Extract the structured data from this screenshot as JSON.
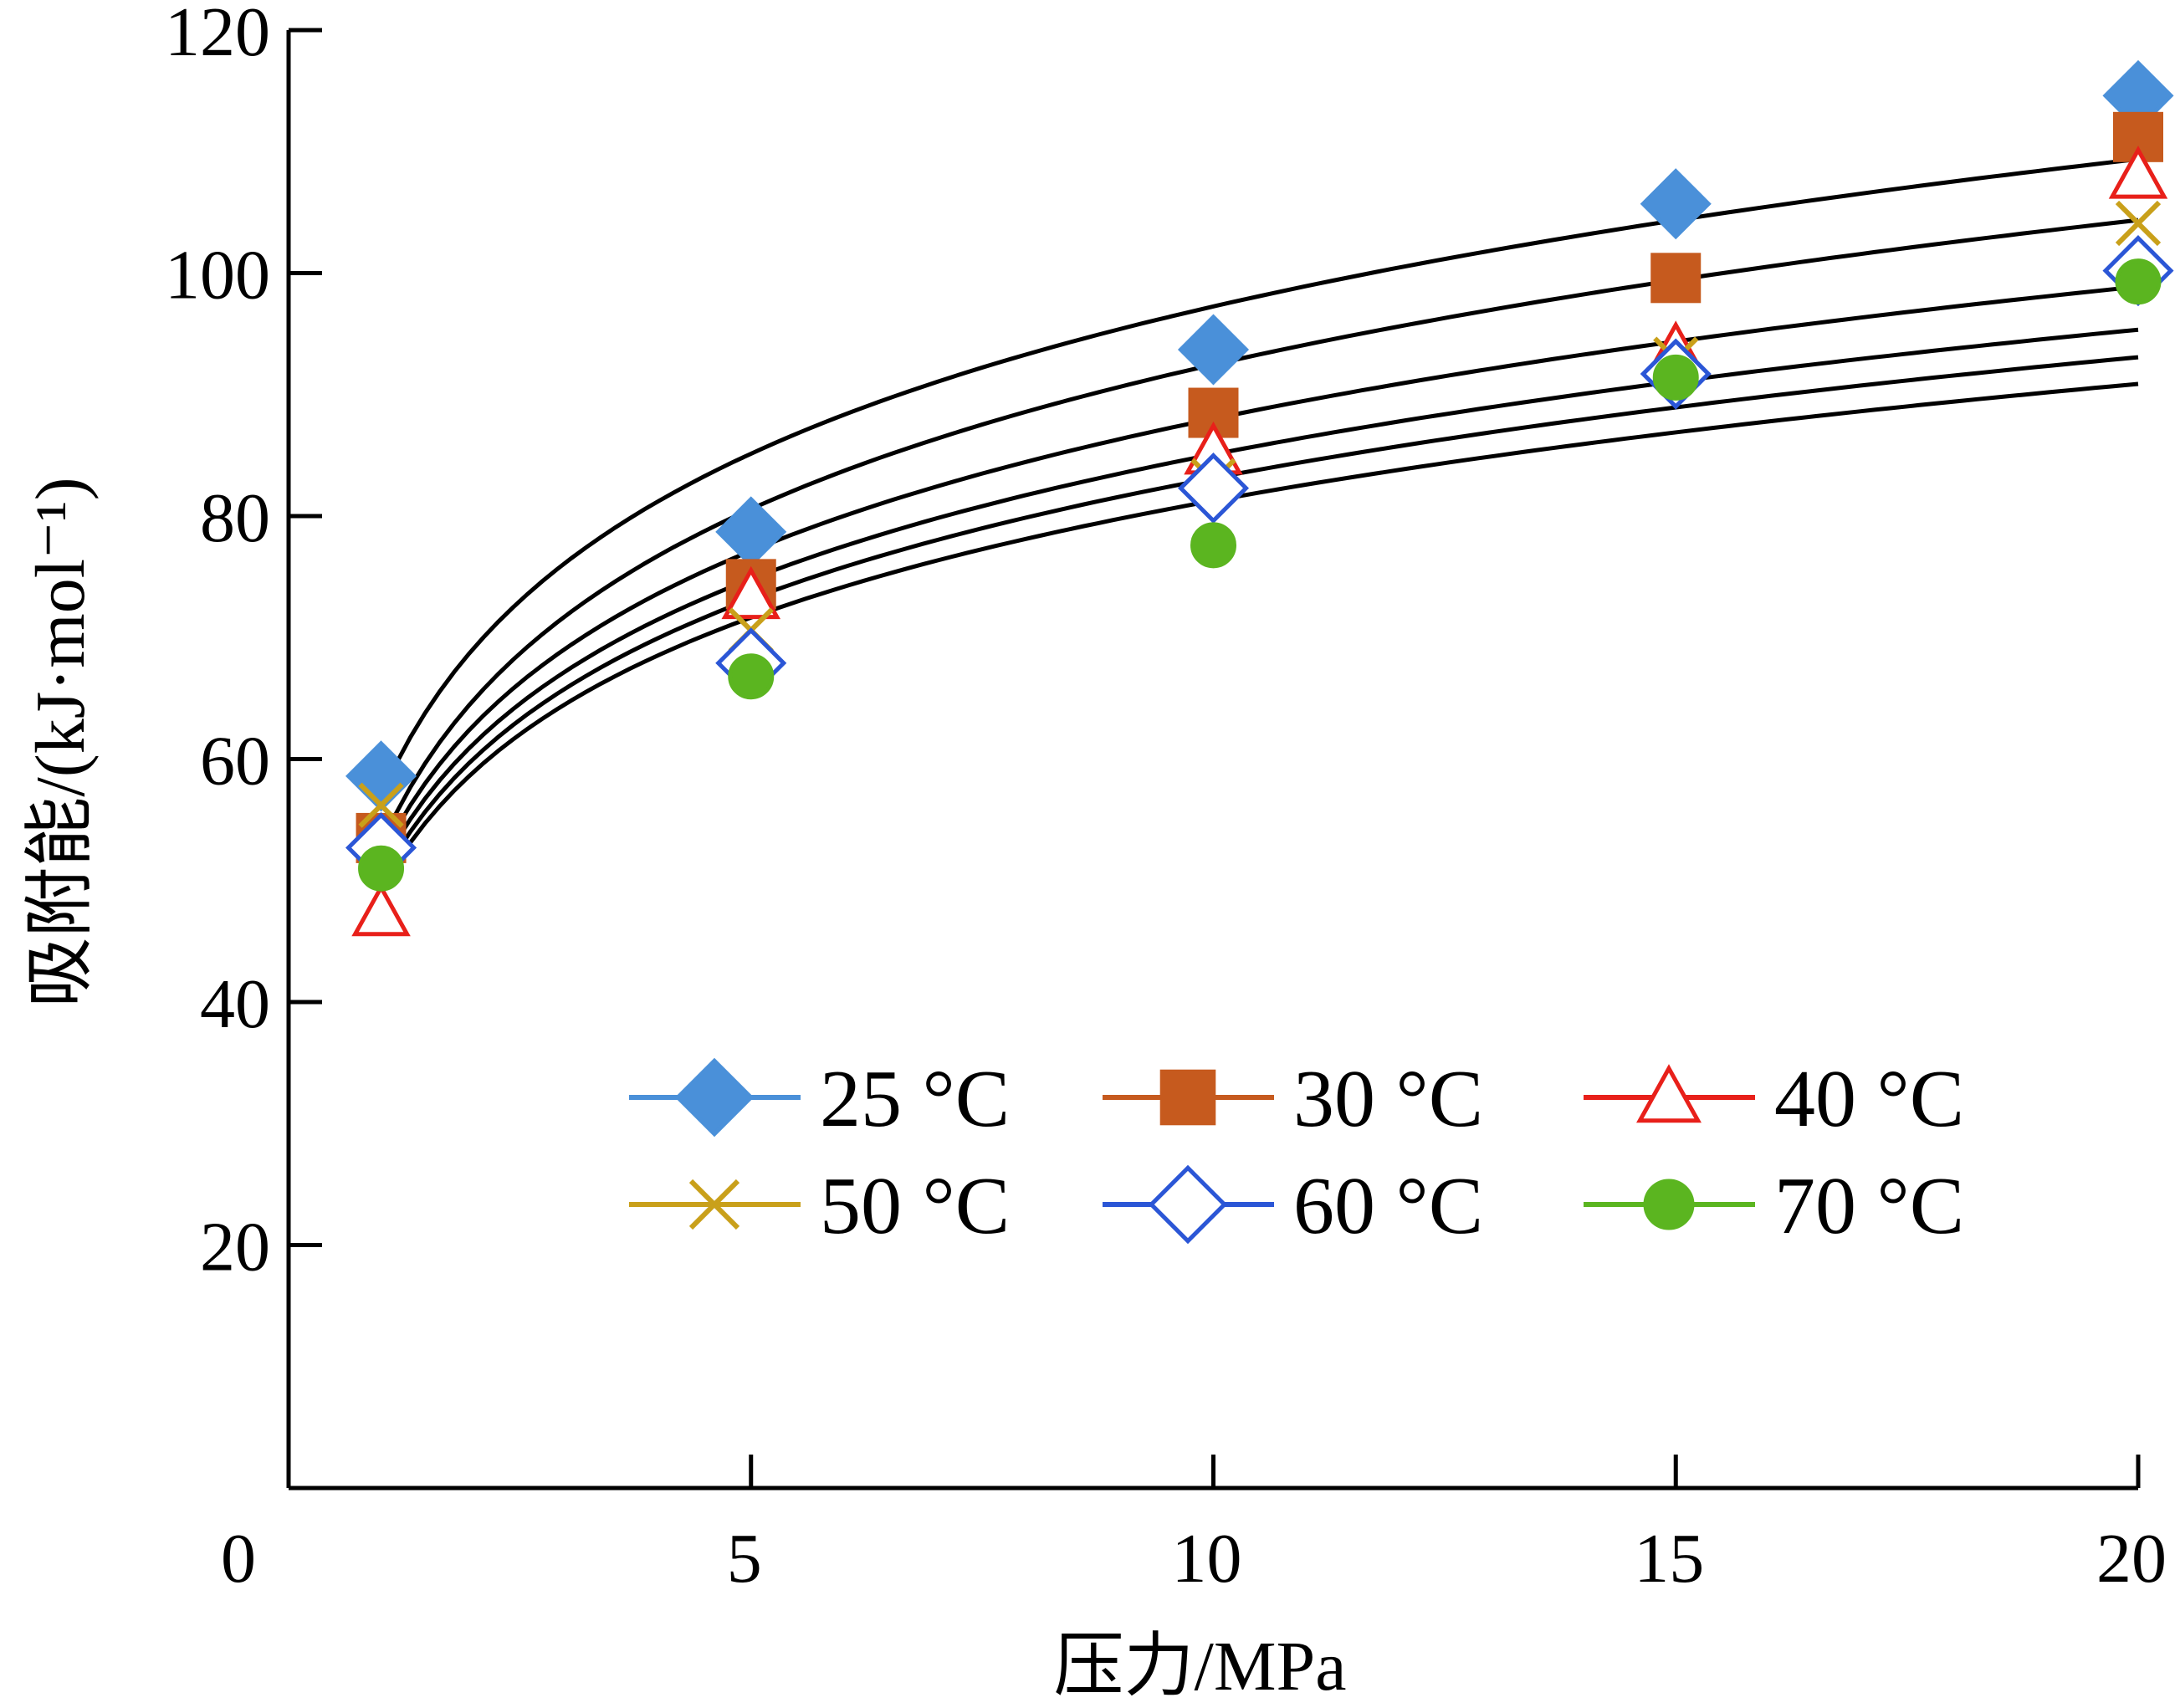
{
  "chart_data": {
    "type": "scatter",
    "xlabel": "压力/MPa",
    "ylabel": "吸附能/(kJ·mol⁻¹)",
    "xlim": [
      0,
      20
    ],
    "ylim": [
      0,
      120
    ],
    "xticks": [
      0,
      5,
      10,
      15,
      20
    ],
    "yticks": [
      20,
      40,
      60,
      80,
      100,
      120
    ],
    "legend_position": "bottom-right",
    "grid": false,
    "fit_curves": "logarithmic fit per temperature (black lines)",
    "series": [
      {
        "name": "25 °C",
        "marker": "diamond",
        "filled": true,
        "color": "#4A90D9",
        "x": [
          1,
          5,
          10,
          15,
          20
        ],
        "y": [
          58.6,
          78.7,
          93.7,
          105.7,
          114.6
        ],
        "fit": [
          57.3,
          84.5,
          97.1,
          104.5,
          109.7
        ]
      },
      {
        "name": "30 °C",
        "marker": "square",
        "filled": true,
        "color": "#C65A1E",
        "x": [
          1,
          5,
          10,
          15,
          20
        ],
        "y": [
          53.5,
          74.4,
          88.5,
          99.6,
          111.2
        ],
        "fit": [
          53.3,
          79.9,
          92.3,
          99.6,
          104.7
        ]
      },
      {
        "name": "40 °C",
        "marker": "triangle",
        "filled": false,
        "color": "#E8201A",
        "x": [
          1,
          5,
          10,
          15,
          20
        ],
        "y": [
          47.3,
          73.4,
          85.3,
          93.6,
          108.0
        ],
        "fit": [
          52.2,
          76.5,
          87.9,
          94.5,
          99.2
        ]
      },
      {
        "name": "50 °C",
        "marker": "x",
        "filled": false,
        "color": "#C9A01A",
        "x": [
          1,
          5,
          10,
          15,
          20
        ],
        "y": [
          56.2,
          70.6,
          82.9,
          92.9,
          104.1
        ],
        "fit": [
          51.3,
          74.2,
          84.9,
          91.2,
          95.7
        ]
      },
      {
        "name": "60 °C",
        "marker": "diamond",
        "filled": false,
        "color": "#2B56D6",
        "x": [
          1,
          5,
          10,
          15,
          20
        ],
        "y": [
          52.7,
          67.9,
          82.3,
          91.7,
          100.2
        ],
        "fit": [
          50.4,
          72.5,
          83.0,
          89.1,
          93.4
        ]
      },
      {
        "name": "70 °C",
        "marker": "circle",
        "filled": true,
        "color": "#5BB520",
        "x": [
          1,
          5,
          10,
          15,
          20
        ],
        "y": [
          51.0,
          66.8,
          77.6,
          91.4,
          99.3
        ],
        "fit": [
          49.6,
          71.1,
          81.1,
          87.0,
          91.2
        ]
      }
    ]
  }
}
